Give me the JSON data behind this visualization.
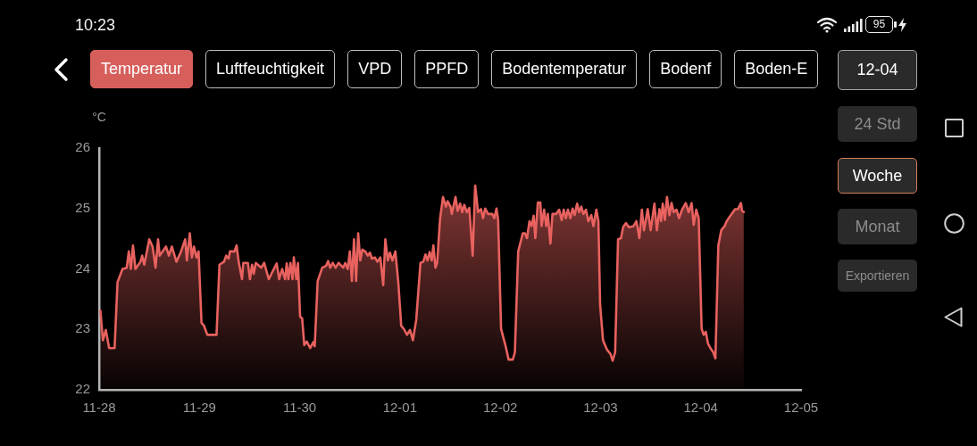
{
  "chart_data": {
    "type": "area",
    "ylabel": "°C",
    "color": "#e8625f",
    "marker": "none",
    "xlim": [
      "--11-28",
      "--12-05"
    ],
    "xticks": [
      {
        "value": "--11-28",
        "label": "11-28"
      },
      {
        "value": "--11-29",
        "label": "11-29"
      },
      {
        "value": "--11-30",
        "label": "11-30"
      },
      {
        "value": "--12-01",
        "label": "12-01"
      },
      {
        "value": "--12-02",
        "label": "12-02"
      },
      {
        "value": "--12-03",
        "label": "12-03"
      },
      {
        "value": "--12-04",
        "label": "12-04"
      },
      {
        "value": "--12-05",
        "label": "12-05"
      }
    ],
    "ylim": [
      22,
      26
    ],
    "yticks": [
      22,
      23,
      24,
      25,
      26
    ],
    "x": [
      "--11-28T00:18",
      "--11-28T00:54",
      "--11-28T01:36",
      "--11-28T02:24",
      "--11-28T03:42",
      "--11-28T04:24",
      "--11-28T05:36",
      "--11-28T06:36",
      "--11-28T07:06",
      "--11-28T07:36",
      "--11-28T08:06",
      "--11-28T08:42",
      "--11-28T09:54",
      "--11-28T10:18",
      "--11-28T10:48",
      "--11-28T12:00",
      "--11-28T12:48",
      "--11-28T13:30",
      "--11-28T14:06",
      "--11-28T14:30",
      "--11-28T16:00",
      "--11-28T16:42",
      "--11-28T17:24",
      "--11-28T18:30",
      "--11-28T19:30",
      "--11-28T20:36",
      "--11-28T21:00",
      "--11-28T21:42",
      "--11-28T22:12",
      "--11-28T22:42",
      "--11-28T23:18",
      "--11-28T23:48",
      "--11-29T00:30",
      "--11-29T01:06",
      "--11-29T01:54",
      "--11-29T04:06",
      "--11-29T04:48",
      "--11-29T05:54",
      "--11-29T06:24",
      "--11-29T07:00",
      "--11-29T07:18",
      "--11-29T08:24",
      "--11-29T08:54",
      "--11-29T09:24",
      "--11-29T10:12",
      "--11-29T10:30",
      "--11-29T11:36",
      "--11-29T12:06",
      "--11-29T12:36",
      "--11-29T13:00",
      "--11-29T13:30",
      "--11-29T14:48",
      "--11-29T15:30",
      "--11-29T16:36",
      "--11-29T17:36",
      "--11-29T18:30",
      "--11-29T19:06",
      "--11-29T19:48",
      "--11-29T20:30",
      "--11-29T20:54",
      "--11-29T21:18",
      "--11-29T21:48",
      "--11-29T22:18",
      "--11-29T22:36",
      "--11-29T23:12",
      "--11-29T23:36",
      "--11-30T00:06",
      "--11-30T00:36",
      "--11-30T01:06",
      "--11-30T01:42",
      "--11-30T02:30",
      "--11-30T03:18",
      "--11-30T03:36",
      "--11-30T04:18",
      "--11-30T05:24",
      "--11-30T06:18",
      "--11-30T06:48",
      "--11-30T07:18",
      "--11-30T07:54",
      "--11-30T08:36",
      "--11-30T09:18",
      "--11-30T10:24",
      "--11-30T10:54",
      "--11-30T11:30",
      "--11-30T12:00",
      "--11-30T12:30",
      "--11-30T13:00",
      "--11-30T13:30",
      "--11-30T14:00",
      "--11-30T14:30",
      "--11-30T15:00",
      "--11-30T15:42",
      "--11-30T16:18",
      "--11-30T16:48",
      "--11-30T17:18",
      "--11-30T18:00",
      "--11-30T18:36",
      "--11-30T19:18",
      "--11-30T20:00",
      "--11-30T20:30",
      "--11-30T21:06",
      "--11-30T21:36",
      "--11-30T22:12",
      "--11-30T22:54",
      "--11-30T23:36",
      "--12-01T00:18",
      "--12-01T01:00",
      "--12-01T01:42",
      "--12-01T02:24",
      "--12-01T03:06",
      "--12-01T03:54",
      "--12-01T04:54",
      "--12-01T05:36",
      "--12-01T06:06",
      "--12-01T06:36",
      "--12-01T07:06",
      "--12-01T07:36",
      "--12-01T08:00",
      "--12-01T08:30",
      "--12-01T08:54",
      "--12-01T09:36",
      "--12-01T10:18",
      "--12-01T11:00",
      "--12-01T11:24",
      "--12-01T12:06",
      "--12-01T12:24",
      "--12-01T13:18",
      "--12-01T13:48",
      "--12-01T14:24",
      "--12-01T14:54",
      "--12-01T15:24",
      "--12-01T16:00",
      "--12-01T16:36",
      "--12-01T17:24",
      "--12-01T18:00",
      "--12-01T18:42",
      "--12-01T19:24",
      "--12-01T19:54",
      "--12-01T20:24",
      "--12-01T21:06",
      "--12-01T22:06",
      "--12-01T22:36",
      "--12-01T23:06",
      "--12-01T23:30",
      "--12-02T00:12",
      "--12-02T01:18",
      "--12-02T02:00",
      "--12-02T03:00",
      "--12-02T03:30",
      "--12-02T04:18",
      "--12-02T05:24",
      "--12-02T05:54",
      "--12-02T06:24",
      "--12-02T07:00",
      "--12-02T07:30",
      "--12-02T08:00",
      "--12-02T08:24",
      "--12-02T09:00",
      "--12-02T09:36",
      "--12-02T09:54",
      "--12-02T10:30",
      "--12-02T11:00",
      "--12-02T11:24",
      "--12-02T12:00",
      "--12-02T12:30",
      "--12-02T13:24",
      "--12-02T14:06",
      "--12-02T14:42",
      "--12-02T15:12",
      "--12-02T15:42",
      "--12-02T16:12",
      "--12-02T16:48",
      "--12-02T17:18",
      "--12-02T17:48",
      "--12-02T18:24",
      "--12-02T18:54",
      "--12-02T19:24",
      "--12-02T19:54",
      "--12-02T20:30",
      "--12-02T21:06",
      "--12-02T21:48",
      "--12-02T22:18",
      "--12-02T23:00",
      "--12-02T23:30",
      "--12-02T23:54",
      "--12-03T00:36",
      "--12-03T01:30",
      "--12-03T02:24",
      "--12-03T02:54",
      "--12-03T03:30",
      "--12-03T04:12",
      "--12-03T04:54",
      "--12-03T05:24",
      "--12-03T06:06",
      "--12-03T06:48",
      "--12-03T07:54",
      "--12-03T08:36",
      "--12-03T09:18",
      "--12-03T09:54",
      "--12-03T10:24",
      "--12-03T11:18",
      "--12-03T12:00",
      "--12-03T12:54",
      "--12-03T13:30",
      "--12-03T14:06",
      "--12-03T14:30",
      "--12-03T14:54",
      "--12-03T15:24",
      "--12-03T15:54",
      "--12-03T16:30",
      "--12-03T17:00",
      "--12-03T17:30",
      "--12-03T18:12",
      "--12-03T18:48",
      "--12-03T19:30",
      "--12-03T20:24",
      "--12-03T21:06",
      "--12-03T21:48",
      "--12-03T22:18",
      "--12-03T22:54",
      "--12-03T23:30",
      "--12-04T00:12",
      "--12-04T00:42",
      "--12-04T01:12",
      "--12-04T01:42",
      "--12-04T02:18",
      "--12-04T03:00",
      "--12-04T03:30",
      "--12-04T04:12",
      "--12-04T04:54",
      "--12-04T05:42",
      "--12-04T06:12",
      "--12-04T06:42",
      "--12-04T07:24",
      "--12-04T08:12",
      "--12-04T08:54",
      "--12-04T09:36",
      "--12-04T09:54",
      "--12-04T10:18"
    ],
    "values": [
      23.31,
      22.82,
      22.99,
      22.69,
      22.69,
      23.78,
      24.0,
      24.02,
      24.29,
      24.0,
      24.39,
      24.0,
      24.12,
      24.22,
      24.07,
      24.49,
      24.37,
      24.02,
      24.49,
      24.22,
      24.37,
      24.22,
      24.37,
      24.12,
      24.27,
      24.49,
      24.14,
      24.59,
      24.19,
      24.37,
      24.19,
      24.29,
      23.11,
      23.06,
      22.91,
      22.91,
      24.07,
      24.12,
      24.22,
      24.17,
      24.29,
      24.29,
      24.39,
      24.12,
      23.83,
      24.1,
      24.1,
      23.83,
      24.07,
      23.92,
      24.1,
      24.02,
      24.1,
      23.83,
      23.97,
      24.09,
      23.83,
      24.0,
      23.83,
      24.09,
      23.83,
      24.1,
      23.83,
      24.19,
      23.83,
      24.1,
      23.21,
      23.18,
      22.74,
      22.8,
      22.69,
      22.79,
      22.72,
      23.8,
      24.02,
      24.05,
      24.13,
      24.02,
      24.1,
      24.02,
      24.1,
      24.02,
      24.1,
      24.0,
      24.29,
      23.8,
      24.49,
      23.8,
      24.59,
      24.14,
      24.32,
      24.29,
      24.22,
      24.27,
      24.17,
      24.19,
      24.12,
      24.19,
      23.73,
      24.49,
      24.14,
      24.27,
      24.14,
      24.29,
      23.78,
      23.06,
      23.0,
      22.91,
      22.99,
      22.82,
      23.16,
      24.1,
      24.12,
      24.24,
      24.14,
      24.28,
      24.14,
      24.39,
      24.02,
      24.1,
      24.83,
      25.19,
      25.03,
      25.12,
      25.03,
      24.91,
      25.19,
      24.96,
      25.08,
      24.94,
      25.06,
      24.94,
      25.01,
      24.22,
      25.38,
      24.94,
      24.99,
      24.84,
      25.0,
      24.91,
      24.91,
      24.84,
      25.0,
      24.81,
      23.01,
      22.72,
      22.5,
      22.5,
      22.62,
      24.29,
      24.59,
      24.59,
      24.51,
      24.79,
      24.71,
      24.88,
      24.51,
      25.1,
      25.1,
      24.71,
      24.98,
      24.71,
      24.91,
      24.42,
      24.91,
      24.91,
      24.98,
      24.81,
      24.98,
      24.84,
      24.98,
      24.84,
      25.0,
      24.89,
      25.08,
      24.94,
      25.03,
      24.91,
      24.98,
      24.79,
      24.89,
      24.71,
      24.98,
      24.79,
      23.41,
      22.82,
      22.67,
      22.59,
      22.48,
      22.62,
      24.49,
      24.51,
      24.69,
      24.76,
      24.69,
      24.71,
      24.79,
      24.51,
      24.98,
      24.64,
      24.99,
      24.64,
      25.08,
      24.64,
      24.99,
      24.79,
      25.08,
      24.81,
      25.19,
      24.89,
      25.09,
      24.94,
      24.98,
      24.84,
      24.98,
      25.09,
      24.94,
      25.09,
      24.73,
      24.98,
      24.84,
      23.01,
      22.91,
      22.96,
      22.77,
      22.69,
      22.62,
      22.52,
      24.39,
      24.64,
      24.71,
      24.79,
      24.84,
      24.91,
      24.99,
      24.99,
      25.09,
      24.96,
      24.94
    ],
    "annotations": [
      "10:23",
      "95",
      "Temperatur",
      "Luftfeuchtigkeit",
      "VPD",
      "PPFD",
      "Bodentemperatur",
      "Bodenf",
      "Boden-E",
      "12-04",
      "24 Std",
      "Woche",
      "Monat",
      "Exportieren"
    ]
  }
}
